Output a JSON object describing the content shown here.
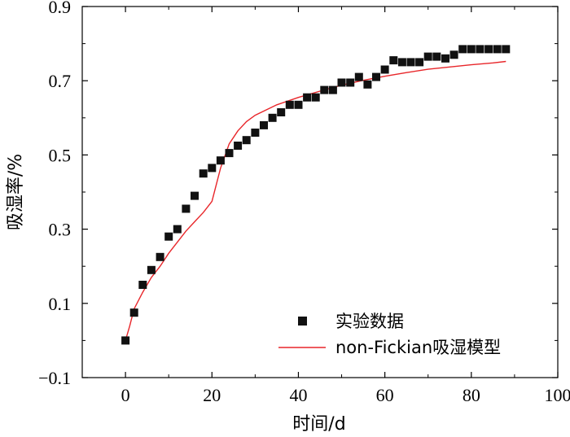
{
  "chart_data": {
    "type": "scatter",
    "title": "",
    "xlabel": "时间/d",
    "ylabel": "吸湿率/%",
    "xlim": [
      -10,
      100
    ],
    "ylim": [
      -0.1,
      0.9
    ],
    "xticks": [
      0,
      20,
      40,
      60,
      80,
      100
    ],
    "yticks": [
      -0.1,
      0.1,
      0.3,
      0.5,
      0.7,
      0.9
    ],
    "xtick_labels": [
      "0",
      "20",
      "40",
      "60",
      "80",
      "100"
    ],
    "ytick_labels": [
      "−0.1",
      "0.1",
      "0.3",
      "0.5",
      "0.7",
      "0.9"
    ],
    "grid": false,
    "legend_position": "bottom-right",
    "series": [
      {
        "name": "实验数据",
        "kind": "markers",
        "marker": "square",
        "color": "#111111",
        "x": [
          0,
          2,
          4,
          6,
          8,
          10,
          12,
          14,
          16,
          18,
          20,
          22,
          24,
          26,
          28,
          30,
          32,
          34,
          36,
          38,
          40,
          42,
          44,
          46,
          48,
          50,
          52,
          54,
          56,
          58,
          60,
          62,
          64,
          66,
          68,
          70,
          72,
          74,
          76,
          78,
          80,
          82,
          84,
          86,
          88
        ],
        "y": [
          0.0,
          0.075,
          0.15,
          0.19,
          0.225,
          0.28,
          0.3,
          0.355,
          0.39,
          0.45,
          0.465,
          0.485,
          0.505,
          0.525,
          0.54,
          0.56,
          0.58,
          0.6,
          0.615,
          0.635,
          0.635,
          0.655,
          0.655,
          0.675,
          0.675,
          0.695,
          0.695,
          0.71,
          0.69,
          0.71,
          0.73,
          0.755,
          0.75,
          0.75,
          0.75,
          0.765,
          0.765,
          0.76,
          0.77,
          0.785,
          0.785,
          0.785,
          0.785,
          0.785,
          0.785
        ]
      },
      {
        "name": "non-Fickian吸湿模型",
        "kind": "line",
        "color": "#e8262a",
        "x": [
          0,
          1,
          2,
          4,
          6,
          8,
          10,
          12,
          14,
          16,
          18,
          20,
          21,
          22,
          24,
          26,
          28,
          30,
          35,
          40,
          45,
          50,
          55,
          60,
          65,
          70,
          75,
          80,
          85,
          88
        ],
        "y": [
          0.0,
          0.04,
          0.085,
          0.13,
          0.17,
          0.2,
          0.235,
          0.265,
          0.295,
          0.32,
          0.345,
          0.375,
          0.42,
          0.465,
          0.53,
          0.565,
          0.59,
          0.607,
          0.635,
          0.655,
          0.672,
          0.688,
          0.701,
          0.712,
          0.722,
          0.731,
          0.737,
          0.743,
          0.748,
          0.752
        ]
      }
    ]
  }
}
